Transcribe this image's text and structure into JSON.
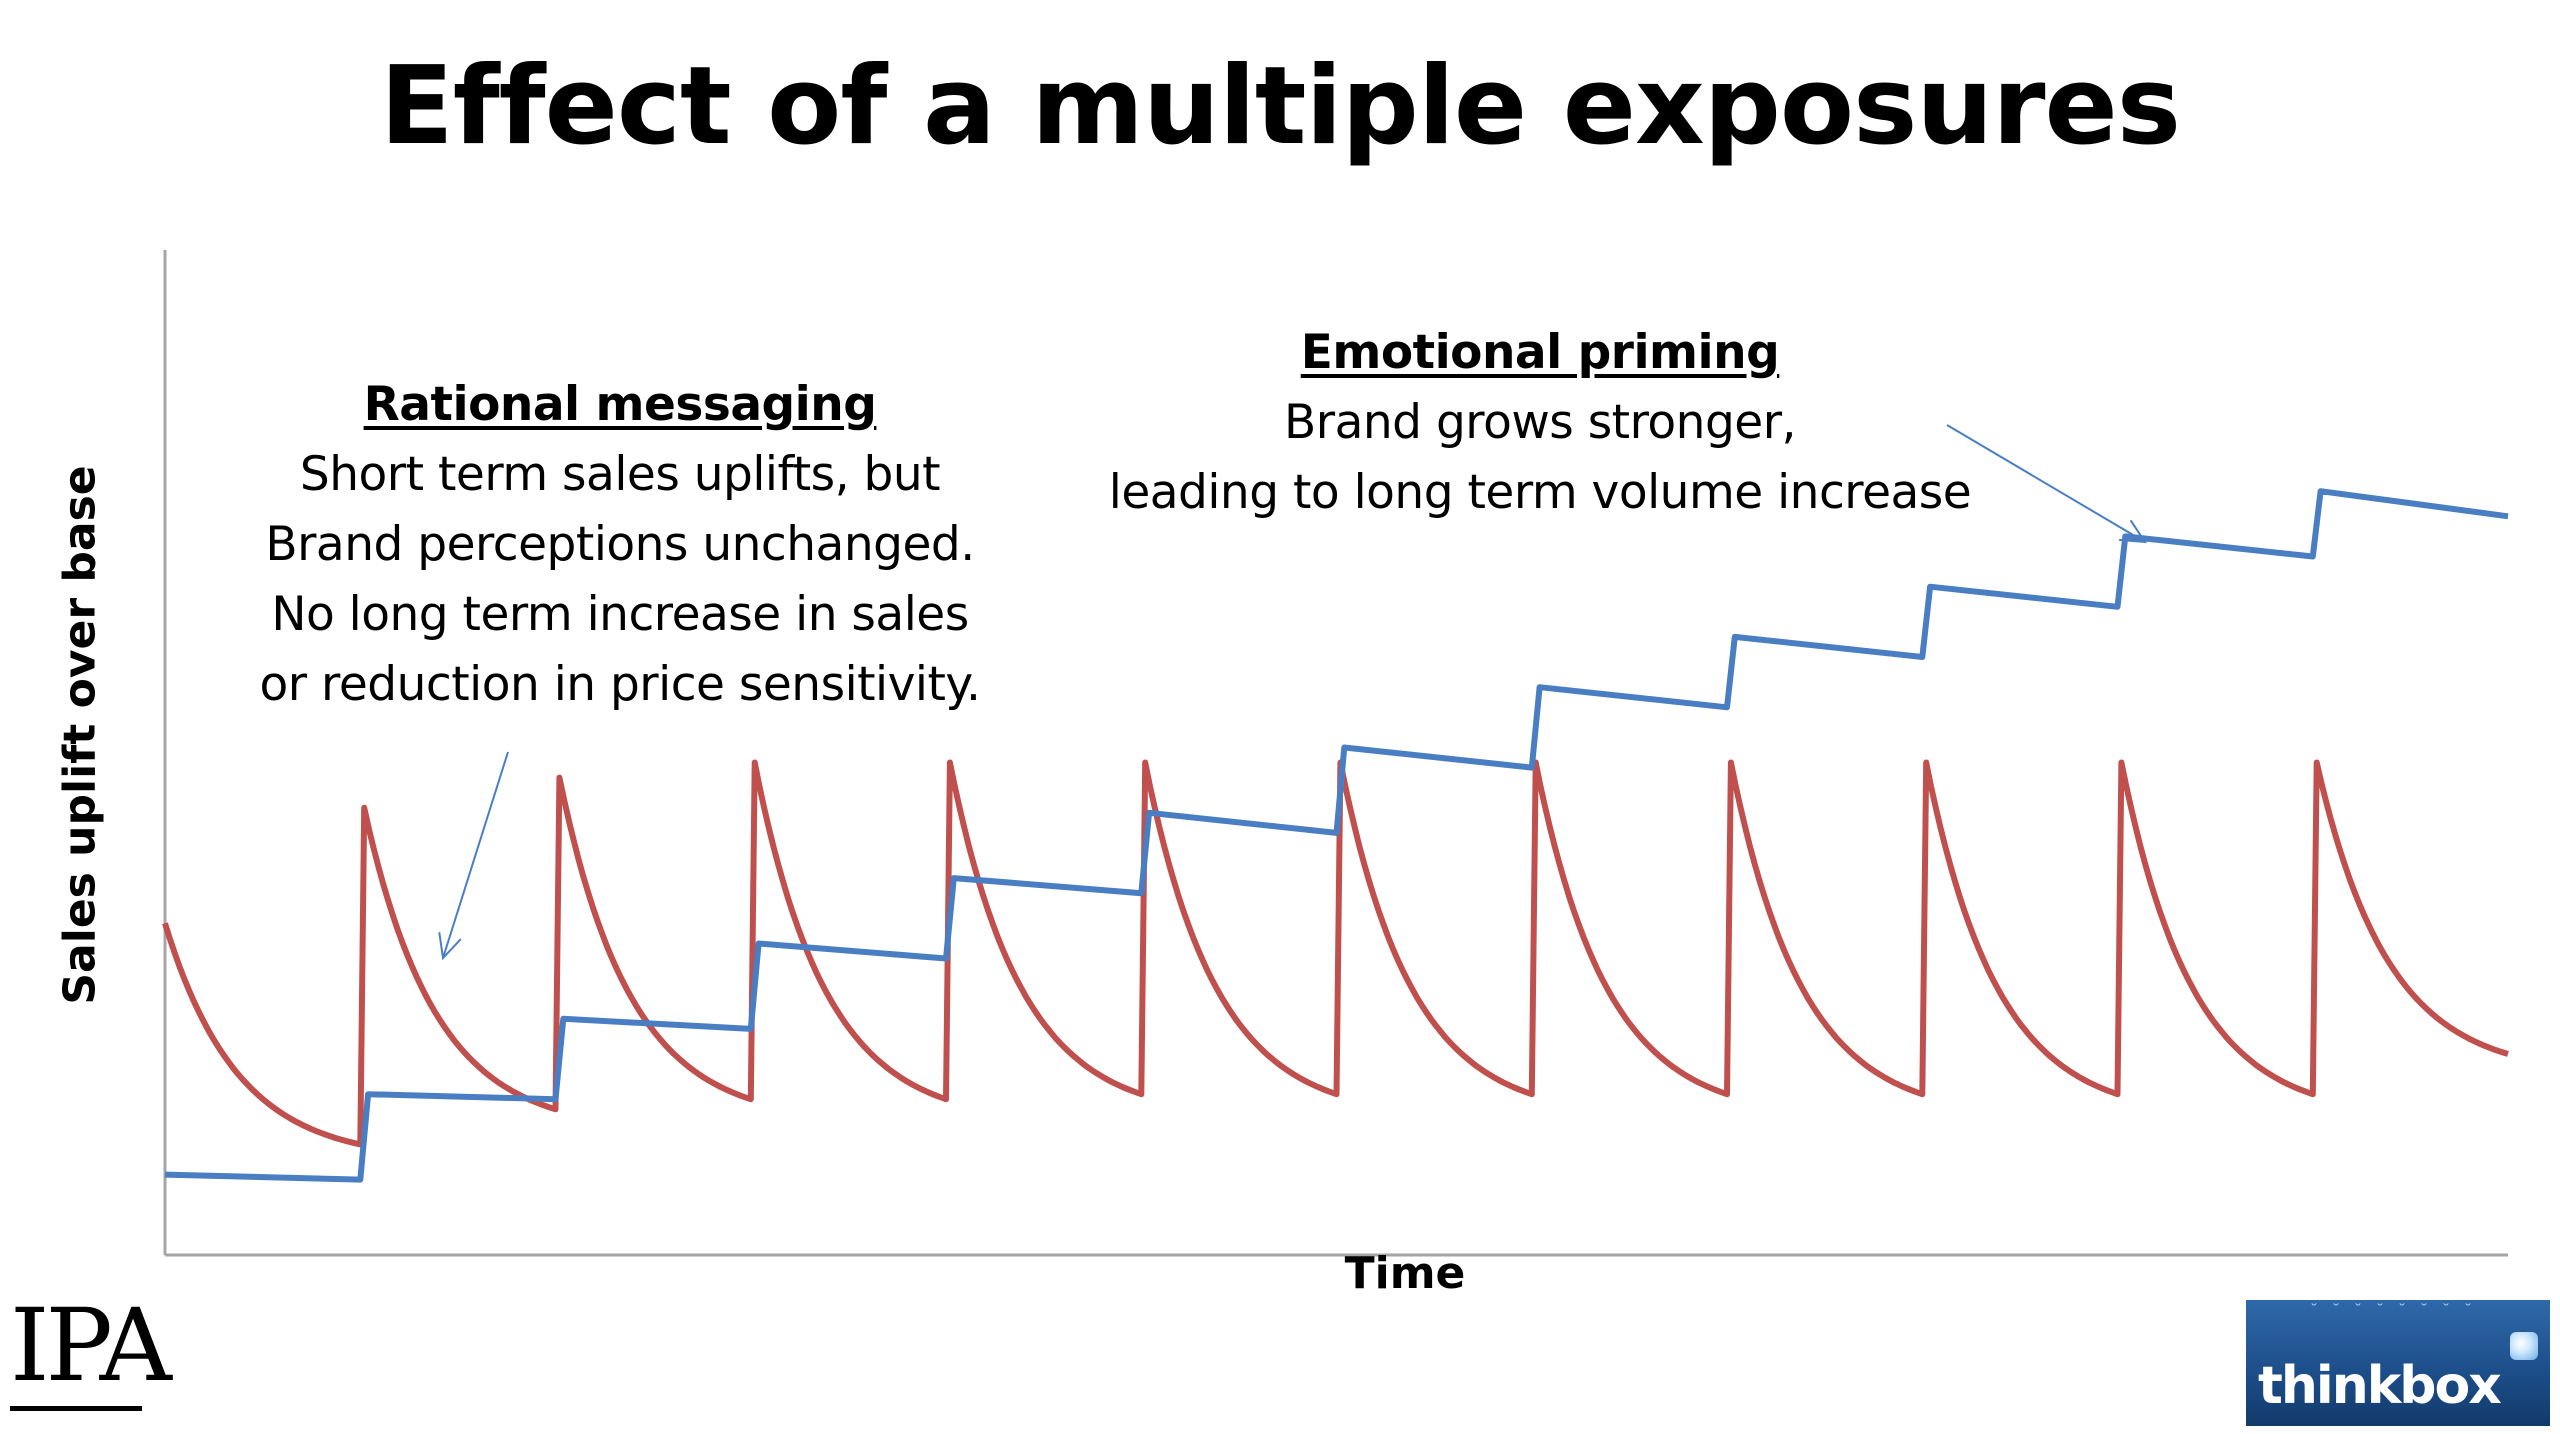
{
  "slide": {
    "title": "Effect of a multiple exposures"
  },
  "annotations": {
    "rational": {
      "heading": "Rational messaging",
      "lines": [
        "Short term sales uplifts, but",
        "Brand perceptions unchanged.",
        "No long term increase in sales",
        "or reduction in price sensitivity."
      ]
    },
    "emotional": {
      "heading": "Emotional priming",
      "lines": [
        "Brand grows stronger,",
        "leading to long term volume increase"
      ]
    }
  },
  "colors": {
    "rational_line": "#c0504d",
    "emotional_line": "#4a7ec2",
    "axis": "#a6a6a6",
    "arrow": "#4a7ec2"
  },
  "logos": {
    "ipa": "IPA",
    "thinkbox": "thinkbox"
  },
  "chart_data": {
    "type": "line",
    "title": "Effect of a multiple exposures",
    "xlabel": "Time",
    "ylabel": "Sales uplift over base",
    "xlim": [
      0,
      12
    ],
    "ylim": [
      0,
      100
    ],
    "x_ticks_shown": false,
    "y_ticks_shown": false,
    "grid": false,
    "exposure_times": [
      1,
      2,
      3,
      4,
      5,
      6,
      7,
      8,
      9,
      10,
      11
    ],
    "series": [
      {
        "name": "Rational messaging",
        "shape": "exponential decay after each exposure",
        "x": [
          0,
          1,
          1.02,
          2,
          2.02,
          3,
          3.02,
          4,
          4.02,
          5,
          5.02,
          6,
          6.02,
          7,
          7.02,
          8,
          8.02,
          9,
          9.02,
          10,
          10.02,
          11,
          11.02,
          12
        ],
        "y": [
          33,
          11,
          44.5,
          14.5,
          47.5,
          15.5,
          49,
          15.5,
          49,
          16,
          49,
          16,
          49,
          16,
          49,
          16,
          49,
          16,
          49,
          16,
          49,
          16,
          49,
          20
        ],
        "decay_rate": 1.35
      },
      {
        "name": "Emotional priming",
        "shape": "stepped increase with slight decline between exposures",
        "x": [
          0,
          1,
          1.04,
          2,
          2.04,
          3,
          3.04,
          4,
          4.04,
          5,
          5.04,
          6,
          6.04,
          7,
          7.04,
          8,
          8.04,
          9,
          9.04,
          10,
          10.04,
          11,
          11.04,
          12
        ],
        "y": [
          8,
          7.5,
          16,
          15.5,
          23.5,
          22.5,
          31,
          29.5,
          37.5,
          36,
          44,
          42,
          50.5,
          48.5,
          56.5,
          54.5,
          61.5,
          59.5,
          66.5,
          64.5,
          71.5,
          69.5,
          76,
          73.5
        ]
      }
    ],
    "annotations": [
      {
        "text": "Rational messaging",
        "points_to": "Rational messaging"
      },
      {
        "text": "Emotional priming",
        "points_to": "Emotional priming"
      }
    ]
  }
}
